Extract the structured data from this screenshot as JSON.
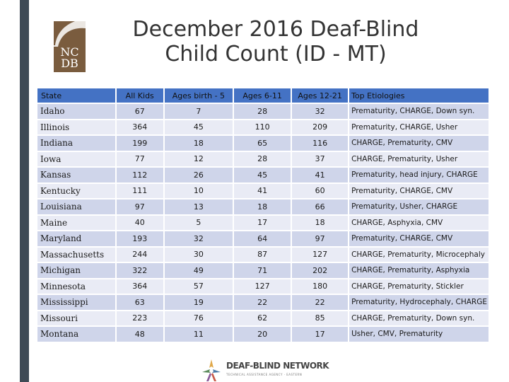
{
  "logo": {
    "line1": "NC",
    "line2": "DB"
  },
  "title": {
    "line1": "December 2016 Deaf-Blind",
    "line2": "Child Count (ID - MT)"
  },
  "table": {
    "headers": [
      "State",
      "All Kids",
      "Ages birth - 5",
      "Ages 6-11",
      "Ages 12-21",
      "Top Etiologies"
    ],
    "rows": [
      [
        "Idaho",
        "67",
        "7",
        "28",
        "32",
        "Prematurity, CHARGE, Down syn."
      ],
      [
        "Illinois",
        "364",
        "45",
        "110",
        "209",
        "Prematurity, CHARGE, Usher"
      ],
      [
        "Indiana",
        "199",
        "18",
        "65",
        "116",
        "CHARGE, Prematurity, CMV"
      ],
      [
        "Iowa",
        "77",
        "12",
        "28",
        "37",
        "CHARGE, Prematurity, Usher"
      ],
      [
        "Kansas",
        "112",
        "26",
        "45",
        "41",
        "Prematurity, head injury, CHARGE"
      ],
      [
        "Kentucky",
        "111",
        "10",
        "41",
        "60",
        "Prematurity, CHARGE, CMV"
      ],
      [
        "Louisiana",
        "97",
        "13",
        "18",
        "66",
        "Prematurity, Usher, CHARGE"
      ],
      [
        "Maine",
        "40",
        "5",
        "17",
        "18",
        "CHARGE, Asphyxia, CMV"
      ],
      [
        "Maryland",
        "193",
        "32",
        "64",
        "97",
        "Prematurity, CHARGE, CMV"
      ],
      [
        "Massachusetts",
        "244",
        "30",
        "87",
        "127",
        "CHARGE, Prematurity, Microcephaly"
      ],
      [
        "Michigan",
        "322",
        "49",
        "71",
        "202",
        "CHARGE, Prematurity, Asphyxia"
      ],
      [
        "Minnesota",
        "364",
        "57",
        "127",
        "180",
        "CHARGE, Prematurity, Stickler"
      ],
      [
        "Mississippi",
        "63",
        "19",
        "22",
        "22",
        "Prematurity, Hydrocephaly, CHARGE"
      ],
      [
        "Missouri",
        "223",
        "76",
        "62",
        "85",
        "CHARGE, Prematurity, Down syn."
      ],
      [
        "Montana",
        "48",
        "11",
        "20",
        "17",
        "Usher, CMV, Prematurity"
      ]
    ]
  },
  "footer": {
    "name": "DEAF-BLIND NETWORK",
    "sub": "TECHNICAL ASSISTANCE AGENCY · EASTERN"
  },
  "colors": {
    "header": "#4472c4",
    "row_dark": "#cfd5ea",
    "row_light": "#e9ebf5",
    "sidebar": "#3e4a55",
    "logo": "#7a5c3e"
  }
}
